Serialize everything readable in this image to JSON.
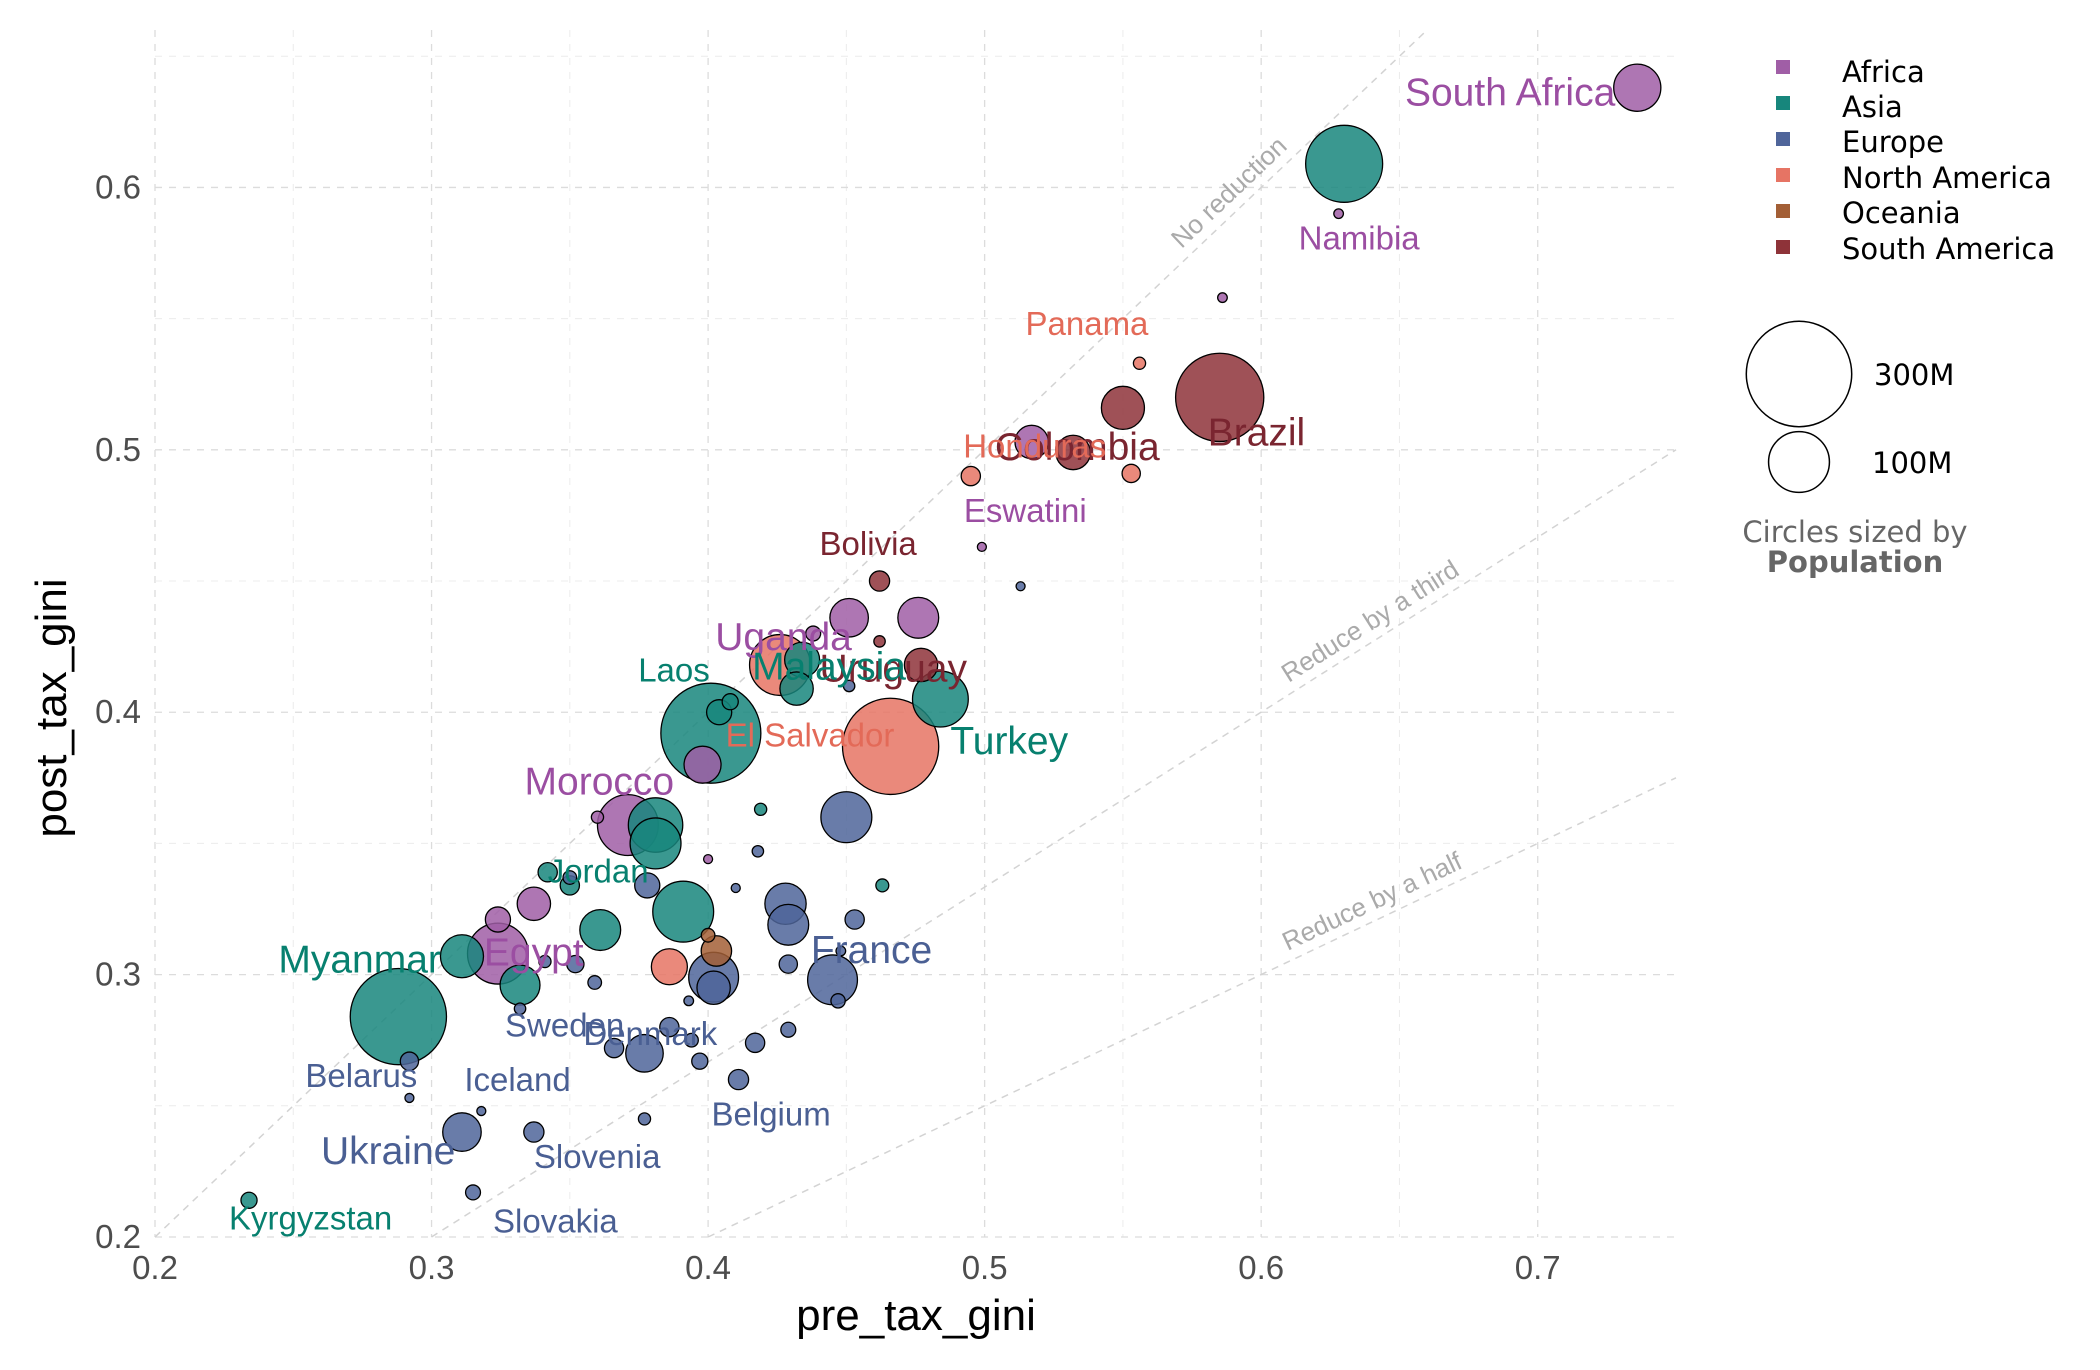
{
  "chart_data": {
    "type": "scatter",
    "title": "",
    "xlabel": "pre_tax_gini",
    "ylabel": "post_tax_gini",
    "xlim": [
      0.2,
      0.75
    ],
    "ylim": [
      0.2,
      0.66
    ],
    "x_ticks": [
      "0.2",
      "0.3",
      "0.4",
      "0.5",
      "0.6",
      "0.7"
    ],
    "y_ticks": [
      "0.2",
      "0.3",
      "0.4",
      "0.5",
      "0.6"
    ],
    "grid": true,
    "legend_position": "right",
    "legend": [
      {
        "name": "Africa",
        "color": "#a05ea6"
      },
      {
        "name": "Asia",
        "color": "#17867c"
      },
      {
        "name": "Europe",
        "color": "#4f659a"
      },
      {
        "name": "North America",
        "color": "#e67464"
      },
      {
        "name": "Oceania",
        "color": "#a35f36"
      },
      {
        "name": "South America",
        "color": "#8e3339"
      }
    ],
    "size_legend": [
      {
        "label": "300M",
        "population_millions": 300
      },
      {
        "label": "100M",
        "population_millions": 100
      }
    ],
    "size_caption": "Circles sized by",
    "size_caption_bold": "Population",
    "reference_lines": [
      {
        "label": "No reduction",
        "slope": 1.0
      },
      {
        "label": "Reduce by a third",
        "slope": 0.6667
      },
      {
        "label": "Reduce by a half",
        "slope": 0.5
      }
    ],
    "points": [
      {
        "x": 0.736,
        "y": 0.638,
        "pop": 60,
        "region": "Africa",
        "label": "South Africa"
      },
      {
        "x": 0.63,
        "y": 0.609,
        "pop": 160,
        "region": "Asia"
      },
      {
        "x": 0.628,
        "y": 0.59,
        "pop": 2.5,
        "region": "Africa",
        "label": "Namibia"
      },
      {
        "x": 0.586,
        "y": 0.558,
        "pop": 2.5,
        "region": "Africa"
      },
      {
        "x": 0.585,
        "y": 0.52,
        "pop": 210,
        "region": "South America",
        "label": "Brazil"
      },
      {
        "x": 0.556,
        "y": 0.533,
        "pop": 4,
        "region": "North America",
        "label": "Panama"
      },
      {
        "x": 0.55,
        "y": 0.516,
        "pop": 50,
        "region": "South America",
        "label": "Colombia"
      },
      {
        "x": 0.553,
        "y": 0.491,
        "pop": 9,
        "region": "North America",
        "label": "Honduras"
      },
      {
        "x": 0.532,
        "y": 0.499,
        "pop": 32,
        "region": "South America"
      },
      {
        "x": 0.517,
        "y": 0.503,
        "pop": 30,
        "region": "Africa"
      },
      {
        "x": 0.499,
        "y": 0.463,
        "pop": 1.1,
        "region": "Africa",
        "label": "Eswatini"
      },
      {
        "x": 0.513,
        "y": 0.448,
        "pop": 1.5,
        "region": "Europe"
      },
      {
        "x": 0.462,
        "y": 0.45,
        "pop": 11,
        "region": "South America",
        "label": "Bolivia"
      },
      {
        "x": 0.495,
        "y": 0.49,
        "pop": 10,
        "region": "North America"
      },
      {
        "x": 0.476,
        "y": 0.436,
        "pop": 45,
        "region": "Africa",
        "label": "Uganda"
      },
      {
        "x": 0.451,
        "y": 0.436,
        "pop": 40,
        "region": "Africa"
      },
      {
        "x": 0.438,
        "y": 0.43,
        "pop": 6,
        "region": "Africa"
      },
      {
        "x": 0.462,
        "y": 0.427,
        "pop": 3.5,
        "region": "South America",
        "label": "Uruguay"
      },
      {
        "x": 0.477,
        "y": 0.418,
        "pop": 30,
        "region": "South America"
      },
      {
        "x": 0.434,
        "y": 0.42,
        "pop": 33,
        "region": "Asia",
        "label": "Malaysia"
      },
      {
        "x": 0.426,
        "y": 0.418,
        "pop": 100,
        "region": "North America"
      },
      {
        "x": 0.432,
        "y": 0.409,
        "pop": 30,
        "region": "Asia"
      },
      {
        "x": 0.451,
        "y": 0.41,
        "pop": 3.5,
        "region": "Europe"
      },
      {
        "x": 0.484,
        "y": 0.405,
        "pop": 84,
        "region": "Asia",
        "label": "Turkey"
      },
      {
        "x": 0.466,
        "y": 0.387,
        "pop": 250,
        "region": "North America",
        "label": "El Salvador"
      },
      {
        "x": 0.408,
        "y": 0.404,
        "pop": 7,
        "region": "Asia",
        "label": "Laos"
      },
      {
        "x": 0.404,
        "y": 0.4,
        "pop": 17,
        "region": "Asia"
      },
      {
        "x": 0.401,
        "y": 0.392,
        "pop": 270,
        "region": "Asia"
      },
      {
        "x": 0.398,
        "y": 0.38,
        "pop": 37,
        "region": "Africa",
        "label": "Morocco"
      },
      {
        "x": 0.419,
        "y": 0.363,
        "pop": 4,
        "region": "Asia"
      },
      {
        "x": 0.45,
        "y": 0.36,
        "pop": 70,
        "region": "Europe"
      },
      {
        "x": 0.371,
        "y": 0.357,
        "pop": 100,
        "region": "Africa"
      },
      {
        "x": 0.381,
        "y": 0.357,
        "pop": 80,
        "region": "Asia"
      },
      {
        "x": 0.381,
        "y": 0.35,
        "pop": 70,
        "region": "Asia"
      },
      {
        "x": 0.36,
        "y": 0.36,
        "pop": 4,
        "region": "Africa"
      },
      {
        "x": 0.418,
        "y": 0.347,
        "pop": 3.5,
        "region": "Europe"
      },
      {
        "x": 0.4,
        "y": 0.344,
        "pop": 2,
        "region": "Africa"
      },
      {
        "x": 0.342,
        "y": 0.339,
        "pop": 10,
        "region": "Asia",
        "label": "Jordan"
      },
      {
        "x": 0.35,
        "y": 0.337,
        "pop": 5,
        "region": "Europe"
      },
      {
        "x": 0.35,
        "y": 0.334,
        "pop": 10,
        "region": "Asia"
      },
      {
        "x": 0.378,
        "y": 0.334,
        "pop": 17,
        "region": "Europe"
      },
      {
        "x": 0.41,
        "y": 0.333,
        "pop": 2,
        "region": "Europe"
      },
      {
        "x": 0.463,
        "y": 0.334,
        "pop": 4.5,
        "region": "Asia"
      },
      {
        "x": 0.337,
        "y": 0.327,
        "pop": 30,
        "region": "Africa"
      },
      {
        "x": 0.391,
        "y": 0.324,
        "pop": 100,
        "region": "Asia"
      },
      {
        "x": 0.428,
        "y": 0.327,
        "pop": 46,
        "region": "Europe"
      },
      {
        "x": 0.324,
        "y": 0.321,
        "pop": 17,
        "region": "Africa"
      },
      {
        "x": 0.429,
        "y": 0.319,
        "pop": 45,
        "region": "Europe"
      },
      {
        "x": 0.453,
        "y": 0.321,
        "pop": 10,
        "region": "Europe"
      },
      {
        "x": 0.361,
        "y": 0.317,
        "pop": 45,
        "region": "Asia"
      },
      {
        "x": 0.324,
        "y": 0.308,
        "pop": 100,
        "region": "Africa",
        "label": "Egypt"
      },
      {
        "x": 0.311,
        "y": 0.307,
        "pop": 50,
        "region": "Asia"
      },
      {
        "x": 0.4,
        "y": 0.315,
        "pop": 5,
        "region": "Oceania"
      },
      {
        "x": 0.403,
        "y": 0.309,
        "pop": 25,
        "region": "Oceania"
      },
      {
        "x": 0.448,
        "y": 0.309,
        "pop": 2.5,
        "region": "Europe",
        "label": "France"
      },
      {
        "x": 0.341,
        "y": 0.305,
        "pop": 4,
        "region": "Europe"
      },
      {
        "x": 0.352,
        "y": 0.304,
        "pop": 8,
        "region": "Europe"
      },
      {
        "x": 0.386,
        "y": 0.303,
        "pop": 35,
        "region": "North America"
      },
      {
        "x": 0.429,
        "y": 0.304,
        "pop": 9,
        "region": "Europe"
      },
      {
        "x": 0.402,
        "y": 0.299,
        "pop": 67,
        "region": "Europe"
      },
      {
        "x": 0.445,
        "y": 0.298,
        "pop": 67,
        "region": "Europe"
      },
      {
        "x": 0.359,
        "y": 0.297,
        "pop": 5,
        "region": "Europe"
      },
      {
        "x": 0.402,
        "y": 0.295,
        "pop": 30,
        "region": "Europe"
      },
      {
        "x": 0.332,
        "y": 0.296,
        "pop": 43,
        "region": "Asia"
      },
      {
        "x": 0.288,
        "y": 0.284,
        "pop": 250,
        "region": "Asia",
        "label": "Myanmar"
      },
      {
        "x": 0.332,
        "y": 0.287,
        "pop": 3.5,
        "region": "Europe",
        "label": "Sweden"
      },
      {
        "x": 0.393,
        "y": 0.29,
        "pop": 2.5,
        "region": "Europe"
      },
      {
        "x": 0.447,
        "y": 0.29,
        "pop": 5.5,
        "region": "Europe"
      },
      {
        "x": 0.386,
        "y": 0.28,
        "pop": 10,
        "region": "Europe",
        "label": "Denmark"
      },
      {
        "x": 0.429,
        "y": 0.279,
        "pop": 6,
        "region": "Europe"
      },
      {
        "x": 0.394,
        "y": 0.275,
        "pop": 5,
        "region": "Europe"
      },
      {
        "x": 0.417,
        "y": 0.274,
        "pop": 10,
        "region": "Europe"
      },
      {
        "x": 0.366,
        "y": 0.272,
        "pop": 10,
        "region": "Europe"
      },
      {
        "x": 0.377,
        "y": 0.27,
        "pop": 38,
        "region": "Europe"
      },
      {
        "x": 0.292,
        "y": 0.267,
        "pop": 9,
        "region": "Europe",
        "label": "Belarus"
      },
      {
        "x": 0.397,
        "y": 0.267,
        "pop": 7,
        "region": "Europe"
      },
      {
        "x": 0.411,
        "y": 0.26,
        "pop": 11,
        "region": "Europe",
        "label": "Belgium"
      },
      {
        "x": 0.292,
        "y": 0.253,
        "pop": 2,
        "region": "Europe"
      },
      {
        "x": 0.318,
        "y": 0.248,
        "pop": 0.4,
        "region": "Europe",
        "label": "Iceland"
      },
      {
        "x": 0.377,
        "y": 0.245,
        "pop": 4,
        "region": "Europe"
      },
      {
        "x": 0.311,
        "y": 0.24,
        "pop": 40,
        "region": "Europe",
        "label": "Ukraine"
      },
      {
        "x": 0.337,
        "y": 0.24,
        "pop": 11,
        "region": "Europe",
        "label": "Slovenia"
      },
      {
        "x": 0.315,
        "y": 0.217,
        "pop": 6,
        "region": "Europe",
        "label": "Slovakia"
      },
      {
        "x": 0.234,
        "y": 0.214,
        "pop": 7,
        "region": "Asia",
        "label": "Kyrgyzstan"
      }
    ]
  }
}
